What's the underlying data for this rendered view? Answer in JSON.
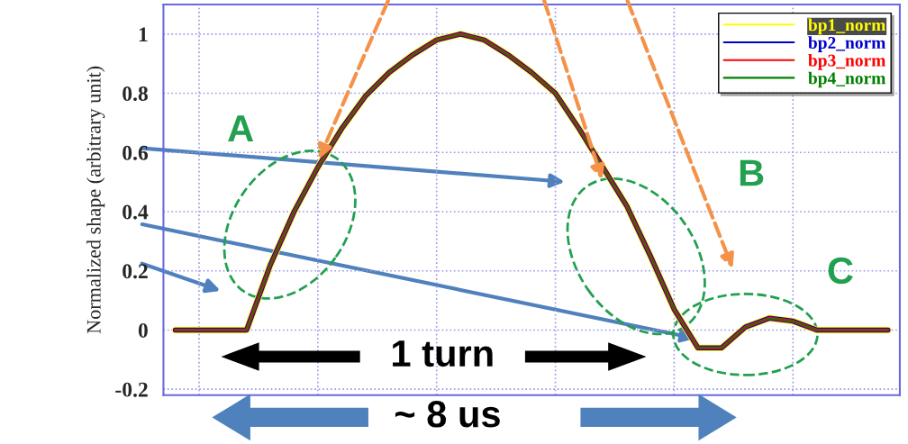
{
  "chart_data": {
    "type": "line",
    "ylabel": "Normalized shape (arbitrary unit)",
    "categories": [
      null,
      null,
      null,
      null,
      null,
      null,
      null,
      null,
      null,
      null,
      null,
      null,
      null,
      null,
      null,
      null,
      null,
      null,
      null,
      null,
      null,
      null,
      null,
      null,
      null,
      null,
      null,
      null,
      null,
      null,
      null
    ],
    "series": [
      {
        "name": "bp1_norm",
        "color": "#ffff00",
        "values": [
          0,
          0,
          0,
          0,
          0.22,
          0.4,
          0.55,
          0.68,
          0.79,
          0.87,
          0.93,
          0.98,
          1.0,
          0.98,
          0.93,
          0.87,
          0.8,
          0.68,
          0.55,
          0.42,
          0.25,
          0.07,
          -0.06,
          -0.06,
          0.01,
          0.04,
          0.03,
          0,
          0,
          0,
          0
        ]
      },
      {
        "name": "bp2_norm",
        "color": "#0000cc",
        "values": [
          0,
          0,
          0,
          0,
          0.22,
          0.4,
          0.55,
          0.68,
          0.79,
          0.87,
          0.93,
          0.98,
          1.0,
          0.98,
          0.93,
          0.87,
          0.8,
          0.68,
          0.55,
          0.42,
          0.25,
          0.07,
          -0.06,
          -0.06,
          0.01,
          0.04,
          0.03,
          0,
          0,
          0,
          0
        ]
      },
      {
        "name": "bp3_norm",
        "color": "#ff0000",
        "values": [
          0,
          0,
          0,
          0,
          0.22,
          0.4,
          0.55,
          0.68,
          0.79,
          0.87,
          0.93,
          0.98,
          1.0,
          0.98,
          0.93,
          0.87,
          0.8,
          0.68,
          0.55,
          0.42,
          0.25,
          0.07,
          -0.06,
          -0.06,
          0.01,
          0.04,
          0.03,
          0,
          0,
          0,
          0
        ]
      },
      {
        "name": "bp4_norm",
        "color": "#008000",
        "values": [
          0,
          0,
          0,
          0,
          0.22,
          0.4,
          0.55,
          0.68,
          0.79,
          0.87,
          0.93,
          0.98,
          1.0,
          0.98,
          0.93,
          0.87,
          0.8,
          0.68,
          0.55,
          0.42,
          0.25,
          0.07,
          -0.06,
          -0.06,
          0.01,
          0.04,
          0.03,
          0,
          0,
          0,
          0
        ]
      }
    ],
    "ylim": [
      -0.22,
      1.1
    ],
    "yticks": [
      -0.2,
      0,
      0.2,
      0.4,
      0.6,
      0.8,
      1
    ],
    "grid": true,
    "legend": "top right",
    "annotations": [
      "A",
      "B",
      "C",
      "1 turn",
      "~ 8 us"
    ]
  }
}
